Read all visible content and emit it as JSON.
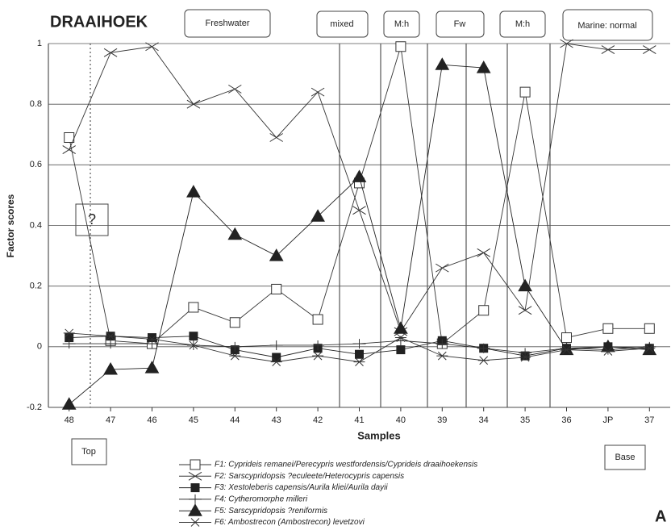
{
  "chart_data": {
    "type": "line",
    "title": "DRAAIHOEK",
    "x_label": "Samples",
    "y_label": "Factor scores",
    "annotations": [
      "Freshwater",
      "mixed",
      "M:h",
      "Fw",
      "M:h",
      "Marine: normal",
      "?",
      "Top",
      "Base",
      "A"
    ],
    "categories": [
      "48",
      "47",
      "46",
      "45",
      "44",
      "43",
      "42",
      "41",
      "40",
      "39",
      "34",
      "35",
      "36",
      "JP",
      "37"
    ],
    "ylim": [
      -0.2,
      1
    ],
    "yticks": [
      -0.2,
      0,
      0.2,
      0.4,
      0.6,
      0.8,
      1
    ],
    "series": [
      {
        "name": "F1: Cyprideis remanei/Perecypris westfordensis/Cyprideis draaihoekensis",
        "color": "#333333",
        "marker": "square-open",
        "values": [
          0.69,
          0.02,
          0.01,
          0.13,
          0.08,
          0.19,
          0.09,
          0.54,
          0.99,
          0.01,
          0.12,
          0.84,
          0.03,
          0.06,
          0.06
        ]
      },
      {
        "name": "F2: Sarscypridopsis ?eculeete/Heterocypris capensis",
        "color": "#333333",
        "marker": "x",
        "values": [
          0.65,
          0.97,
          0.99,
          0.8,
          0.85,
          0.69,
          0.84,
          0.45,
          0.05,
          0.26,
          0.31,
          0.12,
          1,
          0.98,
          0.98
        ]
      },
      {
        "name": "F3: Xestoleberis capensis/Aurila kliei/Aurila dayii",
        "color": "#222222",
        "marker": "square",
        "values": [
          0.03,
          0.035,
          0.03,
          0.035,
          -0.01,
          -0.035,
          -0.005,
          -0.025,
          -0.01,
          0.02,
          -0.005,
          -0.03,
          -0.005,
          0,
          -0.005
        ]
      },
      {
        "name": "F4: Cytheromorphe milleri",
        "color": "#333333",
        "marker": "plus",
        "values": [
          0.01,
          0.01,
          0.01,
          0.005,
          0,
          0.005,
          0.005,
          0.01,
          0.02,
          0.01,
          -0.005,
          -0.02,
          -0.005,
          -0.01,
          0
        ]
      },
      {
        "name": "F5: Sarscypridopsis ?reniformis",
        "color": "#222222",
        "marker": "triangle",
        "values": [
          -0.19,
          -0.075,
          -0.07,
          0.51,
          0.37,
          0.3,
          0.43,
          0.56,
          0.06,
          0.93,
          0.92,
          0.2,
          -0.01,
          0,
          -0.01
        ]
      },
      {
        "name": "F6: Ambostrecon (Ambostrecon) levetzovi",
        "color": "#333333",
        "marker": "asterisk",
        "values": [
          0.045,
          0.035,
          0.025,
          0.005,
          -0.03,
          -0.05,
          -0.03,
          -0.05,
          0.03,
          -0.03,
          -0.045,
          -0.035,
          -0.01,
          -0.015,
          -0.005
        ]
      }
    ]
  }
}
